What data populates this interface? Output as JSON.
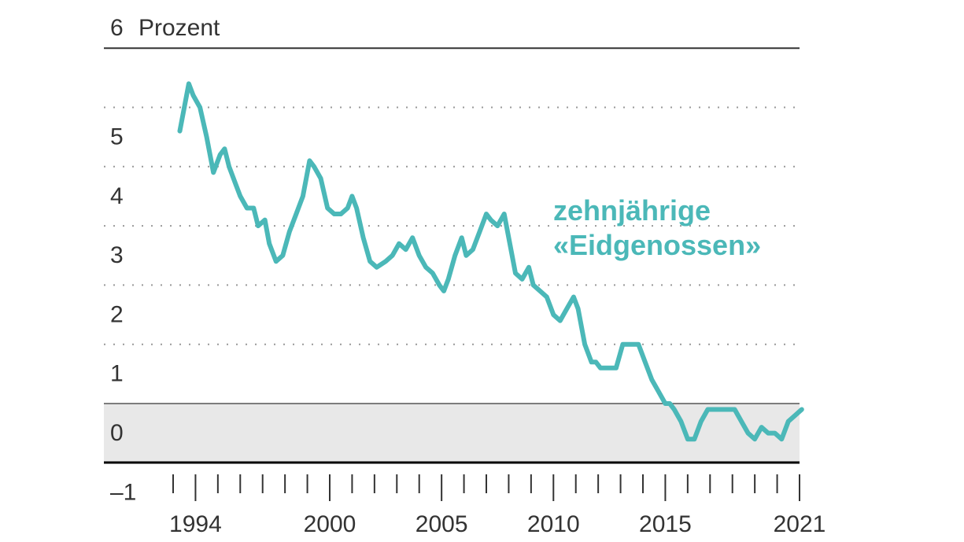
{
  "chart_data": {
    "type": "line",
    "ylabel": "Prozent",
    "ylim": [
      -1.5,
      6
    ],
    "yticks": [
      -1,
      0,
      1,
      2,
      3,
      4,
      5,
      6
    ],
    "ytick_labels": [
      "–1",
      "0",
      "1",
      "2",
      "3",
      "4",
      "5",
      "6"
    ],
    "xlim": [
      1993.0,
      2021.0
    ],
    "xtick_labels": [
      {
        "year": 1994,
        "label": "1994"
      },
      {
        "year": 2000,
        "label": "2000"
      },
      {
        "year": 2005,
        "label": "2005"
      },
      {
        "year": 2010,
        "label": "2010"
      },
      {
        "year": 2015,
        "label": "2015"
      },
      {
        "year": 2021,
        "label": "2021"
      }
    ],
    "minor_tick_years": [
      1993,
      1994,
      1995,
      1996,
      1997,
      1998,
      1999,
      2000,
      2001,
      2002,
      2003,
      2004,
      2005,
      2006,
      2007,
      2008,
      2009,
      2010,
      2011,
      2012,
      2013,
      2014,
      2015,
      2016,
      2017,
      2018,
      2019,
      2020,
      2021
    ],
    "negative_band": [
      -1.5,
      0
    ],
    "series": [
      {
        "name": "zehnjährige «Eidgenossen»",
        "label_lines": [
          "zehnjährige",
          "«Eidgenossen»"
        ],
        "color": "#4bb8b8",
        "x": [
          1993.3,
          1993.5,
          1993.7,
          1993.9,
          1994.2,
          1994.5,
          1994.8,
          1995.1,
          1995.3,
          1995.5,
          1995.8,
          1996.0,
          1996.3,
          1996.6,
          1996.8,
          1997.1,
          1997.3,
          1997.6,
          1997.9,
          1998.2,
          1998.5,
          1998.8,
          1999.1,
          1999.3,
          1999.6,
          1999.9,
          2000.2,
          2000.5,
          2000.8,
          2001.0,
          2001.2,
          2001.5,
          2001.8,
          2002.1,
          2002.5,
          2002.8,
          2003.1,
          2003.4,
          2003.7,
          2004.0,
          2004.3,
          2004.6,
          2004.9,
          2005.1,
          2005.3,
          2005.6,
          2005.9,
          2006.1,
          2006.4,
          2006.7,
          2007.0,
          2007.2,
          2007.5,
          2007.8,
          2008.1,
          2008.3,
          2008.6,
          2008.9,
          2009.1,
          2009.4,
          2009.7,
          2010.0,
          2010.3,
          2010.6,
          2010.9,
          2011.1,
          2011.4,
          2011.7,
          2011.9,
          2012.1,
          2012.4,
          2012.8,
          2013.1,
          2013.5,
          2013.8,
          2014.1,
          2014.4,
          2014.7,
          2015.0,
          2015.2,
          2015.4,
          2015.7,
          2016.0,
          2016.3,
          2016.6,
          2016.9,
          2017.2,
          2017.5,
          2017.8,
          2018.1,
          2018.4,
          2018.7,
          2019.0,
          2019.3,
          2019.6,
          2019.9,
          2020.2,
          2020.5,
          2020.8,
          2021.1
        ],
        "y": [
          4.6,
          5.0,
          5.4,
          5.2,
          5.0,
          4.5,
          3.9,
          4.2,
          4.3,
          4.0,
          3.7,
          3.5,
          3.3,
          3.3,
          3.0,
          3.1,
          2.7,
          2.4,
          2.5,
          2.9,
          3.2,
          3.5,
          4.1,
          4.0,
          3.8,
          3.3,
          3.2,
          3.2,
          3.3,
          3.5,
          3.3,
          2.8,
          2.4,
          2.3,
          2.4,
          2.5,
          2.7,
          2.6,
          2.8,
          2.5,
          2.3,
          2.2,
          2.0,
          1.9,
          2.1,
          2.5,
          2.8,
          2.5,
          2.6,
          2.9,
          3.2,
          3.1,
          3.0,
          3.2,
          2.6,
          2.2,
          2.1,
          2.3,
          2.0,
          1.9,
          1.8,
          1.5,
          1.4,
          1.6,
          1.8,
          1.6,
          1.0,
          0.7,
          0.7,
          0.6,
          0.6,
          0.6,
          1.0,
          1.0,
          1.0,
          0.7,
          0.4,
          0.2,
          0.0,
          0.0,
          -0.1,
          -0.3,
          -0.6,
          -0.6,
          -0.3,
          -0.1,
          -0.1,
          -0.1,
          -0.1,
          -0.1,
          -0.3,
          -0.5,
          -0.6,
          -0.4,
          -0.5,
          -0.5,
          -0.6,
          -0.3,
          -0.2,
          -0.1
        ]
      }
    ],
    "grid": "dotted-horizontal",
    "legend": "inline-label"
  }
}
